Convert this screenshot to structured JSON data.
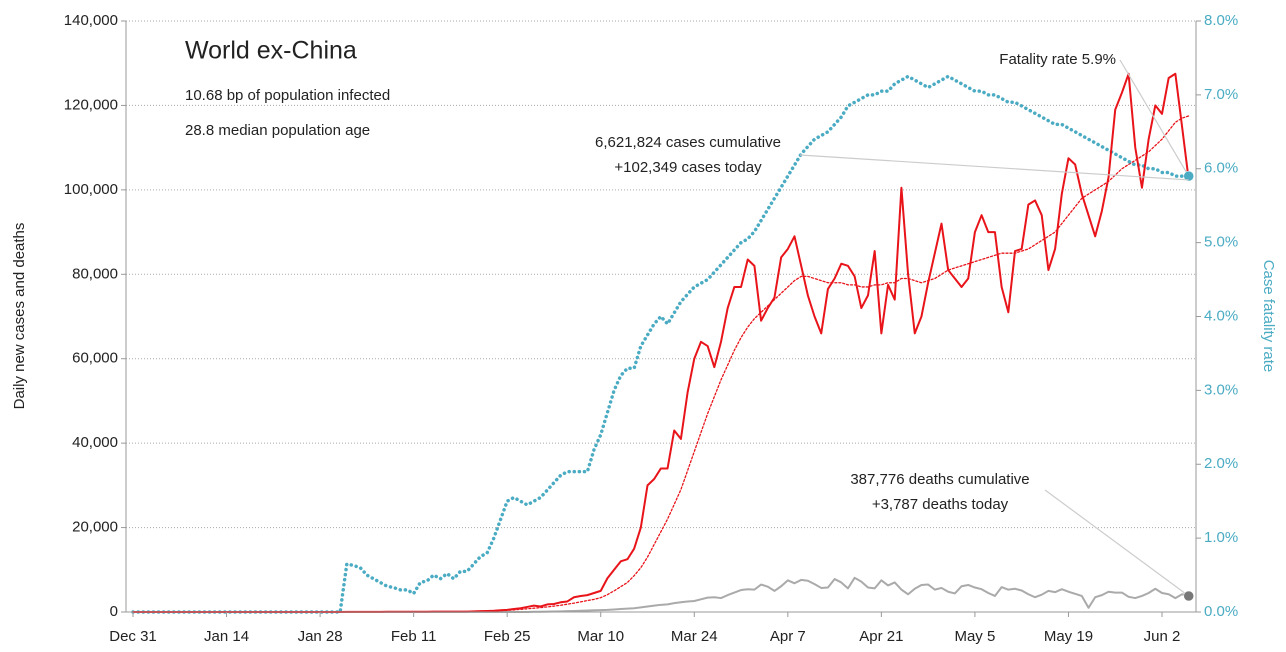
{
  "chart_data": {
    "type": "line",
    "title": "World ex-China",
    "subtitle_lines": [
      "10.68 bp of population infected",
      "28.8 median population age"
    ],
    "annotations": [
      {
        "lines": [
          "Fatality rate 5.9%"
        ],
        "target": "series.3"
      },
      {
        "lines": [
          "6,621,824 cases cumulative",
          "+102,349 cases today"
        ],
        "target": "series.0"
      },
      {
        "lines": [
          "387,776 deaths cumulative",
          "+3,787 deaths today"
        ],
        "target": "series.2"
      }
    ],
    "y_label": "Daily new cases and deaths",
    "y2_label": "Case fatality rate",
    "categories": [
      "Dec 31",
      null,
      null,
      null,
      null,
      null,
      null,
      null,
      null,
      null,
      null,
      null,
      null,
      null,
      "Jan 14",
      null,
      null,
      null,
      null,
      null,
      null,
      null,
      null,
      null,
      null,
      null,
      null,
      null,
      "Jan 28",
      null,
      null,
      null,
      null,
      null,
      null,
      null,
      null,
      null,
      null,
      null,
      null,
      null,
      "Feb 11",
      null,
      null,
      null,
      null,
      null,
      null,
      null,
      null,
      null,
      null,
      null,
      null,
      null,
      "Feb 25",
      null,
      null,
      null,
      null,
      null,
      null,
      null,
      null,
      null,
      null,
      null,
      null,
      null,
      "Mar 10",
      null,
      null,
      null,
      null,
      null,
      null,
      null,
      null,
      null,
      null,
      null,
      null,
      null,
      "Mar 24",
      null,
      null,
      null,
      null,
      null,
      null,
      null,
      null,
      null,
      null,
      null,
      null,
      null,
      "Apr 7",
      null,
      null,
      null,
      null,
      null,
      null,
      null,
      null,
      null,
      null,
      null,
      null,
      null,
      "Apr 21",
      null,
      null,
      null,
      null,
      null,
      null,
      null,
      null,
      null,
      null,
      null,
      null,
      null,
      "May 5",
      null,
      null,
      null,
      null,
      null,
      null,
      null,
      null,
      null,
      null,
      null,
      null,
      null,
      "May 19",
      null,
      null,
      null,
      null,
      null,
      null,
      null,
      null,
      null,
      null,
      null,
      null,
      null,
      "Jun 2",
      null,
      null,
      null,
      null
    ],
    "ylim": [
      0,
      140000
    ],
    "yticks": [
      0,
      {
        "value": 20000,
        "label": "20,000"
      },
      {
        "value": 40000,
        "label": "40,000"
      },
      {
        "value": 60000,
        "label": "60,000"
      },
      {
        "value": 80000,
        "label": "80,000"
      },
      {
        "value": 100000,
        "label": "100,000"
      },
      {
        "value": 120000,
        "label": "120,000"
      },
      {
        "value": 140000,
        "label": "140,000"
      }
    ],
    "y2lim": [
      0,
      8
    ],
    "y2ticks": [
      {
        "value": 0,
        "label": "0.0%"
      },
      {
        "value": 1,
        "label": "1.0%"
      },
      {
        "value": 2,
        "label": "2.0%"
      },
      {
        "value": 3,
        "label": "3.0%"
      },
      {
        "value": 4,
        "label": "4.0%"
      },
      {
        "value": 5,
        "label": "5.0%"
      },
      {
        "value": 6,
        "label": "6.0%"
      },
      {
        "value": 7,
        "label": "7.0%"
      },
      {
        "value": 8,
        "label": "8.0%"
      }
    ],
    "grid": true,
    "series": [
      {
        "color": "#e8141a",
        "style": "solid",
        "values": [
          0,
          0,
          0,
          0,
          0,
          0,
          0,
          0,
          0,
          0,
          0,
          0,
          0,
          0,
          0,
          0,
          0,
          0,
          0,
          0,
          0,
          0,
          0,
          0,
          0,
          0,
          0,
          0,
          0,
          0,
          0,
          10,
          20,
          20,
          30,
          30,
          40,
          40,
          50,
          50,
          60,
          60,
          60,
          70,
          70,
          80,
          80,
          90,
          90,
          100,
          100,
          150,
          200,
          250,
          300,
          400,
          500,
          700,
          900,
          1200,
          1500,
          1300,
          1800,
          1900,
          2300,
          2500,
          3500,
          3800,
          4000,
          4500,
          5000,
          8000,
          10000,
          12000,
          12500,
          15000,
          20000,
          30000,
          31500,
          34000,
          34000,
          43000,
          41000,
          52000,
          60000,
          64000,
          63000,
          58000,
          64000,
          72000,
          77000,
          77000,
          83500,
          82000,
          69000,
          72000,
          74500,
          84000,
          86000,
          89000,
          82000,
          75000,
          70000,
          66000,
          76500,
          79000,
          82500,
          82000,
          79500,
          72000,
          75000,
          85500,
          66000,
          77500,
          74000,
          100500,
          80000,
          66000,
          70000,
          78000,
          85000,
          92000,
          81000,
          79000,
          77000,
          79000,
          90000,
          94000,
          90000,
          90000,
          77000,
          71000,
          85500,
          86000,
          96500,
          97500,
          94000,
          81000,
          86000,
          99000,
          107500,
          106000,
          99000,
          94000,
          89000,
          95000,
          103000,
          119000,
          123000,
          127500,
          110000,
          100500,
          112000,
          120000,
          118000,
          126500,
          127500,
          115000,
          102349
        ]
      },
      {
        "color": "#e8141a",
        "style": "dotted",
        "values": [
          0,
          0,
          0,
          0,
          0,
          0,
          0,
          0,
          0,
          0,
          0,
          0,
          0,
          0,
          0,
          0,
          0,
          0,
          0,
          0,
          0,
          0,
          0,
          0,
          0,
          0,
          0,
          0,
          0,
          0,
          0,
          10,
          15,
          20,
          25,
          30,
          35,
          40,
          45,
          50,
          55,
          60,
          60,
          65,
          70,
          75,
          80,
          85,
          90,
          95,
          100,
          130,
          170,
          210,
          260,
          320,
          400,
          500,
          620,
          760,
          900,
          1050,
          1200,
          1400,
          1600,
          1850,
          2100,
          2400,
          2700,
          3000,
          3400,
          4100,
          5000,
          6000,
          7000,
          8600,
          10500,
          13000,
          16000,
          19000,
          22000,
          25500,
          29000,
          33500,
          38000,
          42500,
          47000,
          51000,
          55000,
          58500,
          62000,
          65000,
          67500,
          69500,
          71000,
          72500,
          74000,
          75500,
          77000,
          78500,
          79500,
          79500,
          79000,
          78500,
          78000,
          78000,
          78000,
          77500,
          77500,
          77000,
          77000,
          77500,
          77500,
          78000,
          78000,
          79000,
          79000,
          78500,
          78000,
          78500,
          79000,
          80000,
          81000,
          81500,
          82000,
          82500,
          83000,
          83500,
          84000,
          84500,
          85000,
          85000,
          85000,
          85500,
          86000,
          87000,
          88000,
          89000,
          90000,
          92000,
          94000,
          96000,
          98000,
          99000,
          100000,
          101000,
          102000,
          103500,
          105000,
          106000,
          107000,
          108000,
          109000,
          110500,
          112000,
          114000,
          116000,
          117000,
          117500
        ]
      },
      {
        "color": "#aaaaaa",
        "style": "solid",
        "values": [
          0,
          0,
          0,
          0,
          0,
          0,
          0,
          0,
          0,
          0,
          0,
          0,
          0,
          0,
          0,
          0,
          0,
          0,
          0,
          0,
          0,
          0,
          0,
          0,
          0,
          0,
          0,
          0,
          0,
          0,
          0,
          0,
          0,
          0,
          0,
          0,
          0,
          0,
          0,
          0,
          0,
          0,
          0,
          0,
          0,
          0,
          0,
          0,
          0,
          0,
          0,
          0,
          0,
          0,
          0,
          0,
          0,
          0,
          0,
          0,
          50,
          70,
          100,
          120,
          150,
          200,
          250,
          300,
          350,
          400,
          450,
          500,
          600,
          700,
          800,
          900,
          1100,
          1300,
          1500,
          1700,
          1800,
          2100,
          2300,
          2500,
          2600,
          3000,
          3400,
          3500,
          3300,
          4000,
          4600,
          5200,
          5400,
          5300,
          6500,
          6000,
          5000,
          6100,
          7500,
          6800,
          7600,
          7400,
          6600,
          5700,
          5800,
          7800,
          7000,
          5600,
          8100,
          7200,
          5800,
          5600,
          7500,
          6300,
          7000,
          5300,
          4200,
          5500,
          6400,
          6500,
          5300,
          5700,
          4800,
          4400,
          6100,
          6400,
          5800,
          5400,
          4500,
          3800,
          5900,
          5300,
          5500,
          5100,
          4200,
          3500,
          4100,
          5000,
          4700,
          5400,
          4800,
          4300,
          3800,
          1000,
          3500,
          4000,
          4800,
          4600,
          4600,
          3600,
          3300,
          3800,
          4500,
          5500,
          4500,
          4200,
          3300,
          4200,
          3787
        ]
      },
      {
        "color": "#4aabc3",
        "style": "dotted",
        "axis": "y2",
        "values": [
          0,
          0,
          0,
          0,
          0,
          0,
          0,
          0,
          0,
          0,
          0,
          0,
          0,
          0,
          0,
          0,
          0,
          0,
          0,
          0,
          0,
          0,
          0,
          0,
          0,
          0,
          0,
          0,
          0,
          0,
          0,
          0,
          0.65,
          0.63,
          0.6,
          0.5,
          0.45,
          0.4,
          0.35,
          0.33,
          0.3,
          0.3,
          0.25,
          0.4,
          0.42,
          0.5,
          0.45,
          0.52,
          0.45,
          0.55,
          0.55,
          0.65,
          0.75,
          0.8,
          1.0,
          1.25,
          1.5,
          1.55,
          1.5,
          1.45,
          1.5,
          1.55,
          1.65,
          1.75,
          1.85,
          1.9,
          1.9,
          1.9,
          1.9,
          2.2,
          2.4,
          2.7,
          3.0,
          3.2,
          3.3,
          3.3,
          3.6,
          3.75,
          3.9,
          4.0,
          3.9,
          4.05,
          4.2,
          4.3,
          4.4,
          4.45,
          4.5,
          4.6,
          4.7,
          4.8,
          4.9,
          5.0,
          5.05,
          5.15,
          5.3,
          5.45,
          5.6,
          5.75,
          5.9,
          6.05,
          6.2,
          6.3,
          6.4,
          6.45,
          6.5,
          6.6,
          6.7,
          6.85,
          6.9,
          6.95,
          7.0,
          7.0,
          7.05,
          7.05,
          7.15,
          7.2,
          7.25,
          7.2,
          7.15,
          7.1,
          7.15,
          7.2,
          7.25,
          7.2,
          7.15,
          7.1,
          7.05,
          7.05,
          7.0,
          7.0,
          6.95,
          6.9,
          6.9,
          6.85,
          6.8,
          6.75,
          6.7,
          6.65,
          6.6,
          6.6,
          6.55,
          6.5,
          6.45,
          6.4,
          6.35,
          6.3,
          6.25,
          6.2,
          6.15,
          6.1,
          6.05,
          6.05,
          6.0,
          6.0,
          5.95,
          5.95,
          5.9,
          5.9,
          5.9
        ]
      }
    ]
  }
}
